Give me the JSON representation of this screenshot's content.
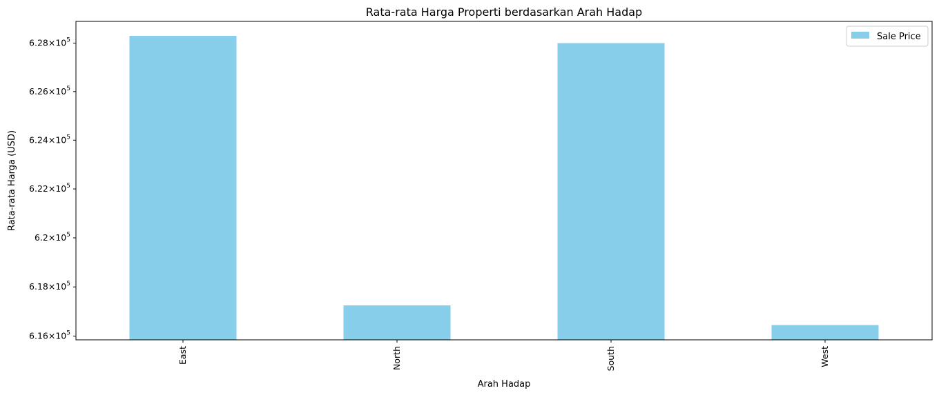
{
  "chart_data": {
    "type": "bar",
    "title": "Rata-rata Harga Properti berdasarkan Arah Hadap",
    "xlabel": "Arah Hadap",
    "ylabel": "Rata-rata Harga (USD)",
    "categories": [
      "East",
      "North",
      "South",
      "West"
    ],
    "series": [
      {
        "name": "Sale Price",
        "color": "#87CEEB",
        "values": [
          628300,
          617250,
          628000,
          616450
        ]
      }
    ],
    "yscale": "log",
    "ylim": [
      615850,
      628900
    ],
    "yticks": [
      {
        "value": 616000,
        "mantissa": "6.16"
      },
      {
        "value": 618000,
        "mantissa": "6.18"
      },
      {
        "value": 620000,
        "mantissa": "6.2"
      },
      {
        "value": 622000,
        "mantissa": "6.22"
      },
      {
        "value": 624000,
        "mantissa": "6.24"
      },
      {
        "value": 626000,
        "mantissa": "6.26"
      },
      {
        "value": 628000,
        "mantissa": "6.28"
      }
    ],
    "ytick_exponent_base": "10",
    "ytick_exponent": "5",
    "grid": false,
    "legend_position": "top-right"
  }
}
